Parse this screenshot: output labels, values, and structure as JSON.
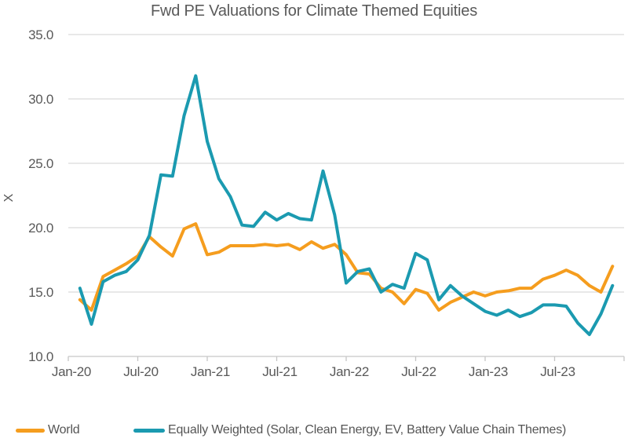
{
  "title": "Fwd PE Valuations for Climate Themed Equities",
  "colors": {
    "world": "#F59D1E",
    "equally_weighted": "#1B9AB0",
    "grid": "#D9D9D9",
    "axis": "#C6C6C6",
    "text": "#595959",
    "title_text": "#5A5A5A"
  },
  "legend": {
    "world_label": "World",
    "equally_weighted_label": "Equally Weighted (Solar, Clean Energy, EV, Battery Value Chain Themes)"
  },
  "chart_data": {
    "type": "line",
    "title": "Fwd PE Valuations for Climate Themed Equities",
    "xlabel": "",
    "ylabel": "X",
    "ylim": [
      10,
      35
    ],
    "yticks": [
      10,
      15,
      20,
      25,
      30,
      35
    ],
    "ytick_labels": [
      "10.0",
      "15.0",
      "20.0",
      "25.0",
      "30.0",
      "35.0"
    ],
    "xtick_labels": [
      "Jan-20",
      "Jul-20",
      "Jan-21",
      "Jul-21",
      "Jan-22",
      "Jul-22",
      "Jan-23",
      "Jul-23"
    ],
    "grid": "horizontal",
    "legend_position": "bottom",
    "categories": [
      "Jan-20",
      "Feb-20",
      "Mar-20",
      "Apr-20",
      "May-20",
      "Jun-20",
      "Jul-20",
      "Aug-20",
      "Sep-20",
      "Oct-20",
      "Nov-20",
      "Dec-20",
      "Jan-21",
      "Feb-21",
      "Mar-21",
      "Apr-21",
      "May-21",
      "Jun-21",
      "Jul-21",
      "Aug-21",
      "Sep-21",
      "Oct-21",
      "Nov-21",
      "Dec-21",
      "Jan-22",
      "Feb-22",
      "Mar-22",
      "Apr-22",
      "May-22",
      "Jun-22",
      "Jul-22",
      "Aug-22",
      "Sep-22",
      "Oct-22",
      "Nov-22",
      "Dec-22",
      "Jan-23",
      "Feb-23",
      "Mar-23",
      "Apr-23",
      "May-23",
      "Jun-23",
      "Jul-23",
      "Aug-23",
      "Sep-23",
      "Oct-23",
      "Nov-23"
    ],
    "series": [
      {
        "name": "World",
        "color": "#F59D1E",
        "values": [
          14.4,
          13.6,
          16.2,
          16.7,
          17.2,
          17.8,
          19.3,
          18.5,
          17.8,
          19.9,
          20.3,
          17.9,
          18.1,
          18.6,
          18.6,
          18.6,
          18.7,
          18.6,
          18.7,
          18.3,
          18.9,
          18.4,
          18.7,
          17.9,
          16.5,
          16.4,
          15.3,
          15.0,
          14.1,
          15.2,
          14.9,
          13.6,
          14.2,
          14.6,
          15.0,
          14.7,
          15.0,
          15.1,
          15.3,
          15.3,
          16.0,
          16.3,
          16.7,
          16.3,
          15.5,
          15.0,
          17.0
        ]
      },
      {
        "name": "Equally Weighted (Solar, Clean Energy, EV, Battery Value Chain Themes)",
        "color": "#1B9AB0",
        "values": [
          15.3,
          12.5,
          15.8,
          16.3,
          16.6,
          17.5,
          19.4,
          24.1,
          24.0,
          28.7,
          31.8,
          26.7,
          23.8,
          22.4,
          20.2,
          20.1,
          21.2,
          20.6,
          21.1,
          20.7,
          20.6,
          24.4,
          21.0,
          15.7,
          16.6,
          16.8,
          15.0,
          15.6,
          15.3,
          18.0,
          17.5,
          14.4,
          15.5,
          14.7,
          14.1,
          13.5,
          13.2,
          13.6,
          13.1,
          13.4,
          14.0,
          14.0,
          13.9,
          12.6,
          11.7,
          13.3,
          15.5
        ]
      }
    ]
  }
}
